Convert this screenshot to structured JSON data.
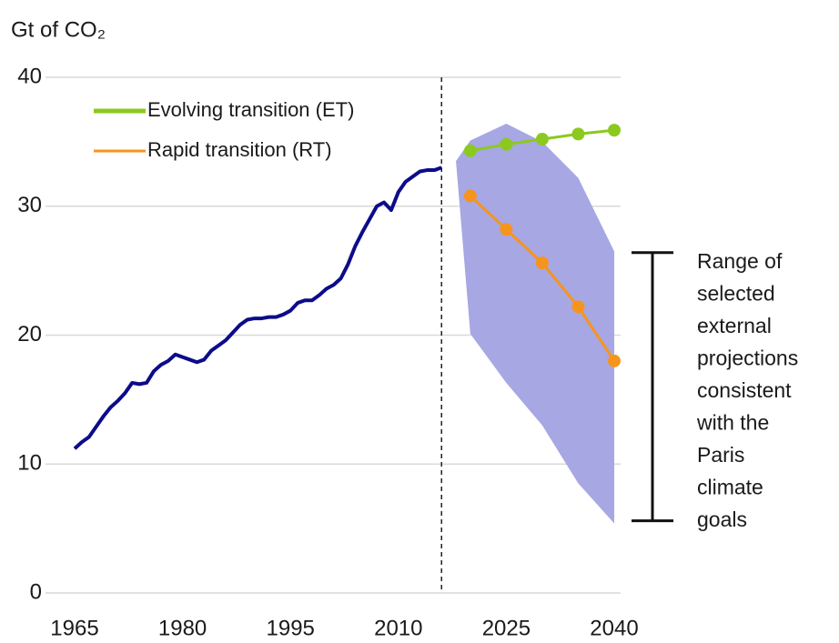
{
  "chart_data": {
    "type": "line",
    "y_label": "Gt of CO₂",
    "xlim": [
      1965,
      2040
    ],
    "xticks": [
      1965,
      1980,
      1995,
      2010,
      2025,
      2040
    ],
    "ylim": [
      0,
      40
    ],
    "yticks": [
      0,
      10,
      20,
      30,
      40
    ],
    "grid": true,
    "divider_x": 2016,
    "history": {
      "color": "#0c0c8a",
      "x": [
        1965,
        1966,
        1967,
        1968,
        1969,
        1970,
        1971,
        1972,
        1973,
        1974,
        1975,
        1976,
        1977,
        1978,
        1979,
        1980,
        1981,
        1982,
        1983,
        1984,
        1985,
        1986,
        1987,
        1988,
        1989,
        1990,
        1991,
        1992,
        1993,
        1994,
        1995,
        1996,
        1997,
        1998,
        1999,
        2000,
        2001,
        2002,
        2003,
        2004,
        2005,
        2006,
        2007,
        2008,
        2009,
        2010,
        2011,
        2012,
        2013,
        2014,
        2015,
        2016
      ],
      "values": [
        11.2,
        11.7,
        12.1,
        12.9,
        13.7,
        14.4,
        14.9,
        15.5,
        16.3,
        16.2,
        16.3,
        17.2,
        17.7,
        18.0,
        18.5,
        18.3,
        18.1,
        17.9,
        18.1,
        18.8,
        19.2,
        19.6,
        20.2,
        20.8,
        21.2,
        21.3,
        21.3,
        21.4,
        21.4,
        21.6,
        21.9,
        22.5,
        22.7,
        22.7,
        23.1,
        23.6,
        23.9,
        24.4,
        25.5,
        26.9,
        28.0,
        29.0,
        30.0,
        30.3,
        29.7,
        31.1,
        31.9,
        32.3,
        32.7,
        32.8,
        32.8,
        33.0
      ]
    },
    "band": {
      "color": "#a7a7e3",
      "x": [
        2018,
        2020,
        2025,
        2030,
        2035,
        2040
      ],
      "upper": [
        33.5,
        35.1,
        36.4,
        35.0,
        32.2,
        26.5
      ],
      "lower": [
        33.5,
        20.1,
        16.3,
        13.0,
        8.5,
        5.4
      ]
    },
    "series": [
      {
        "name": "Evolving transition (ET)",
        "color": "#8cc91e",
        "x": [
          2020,
          2025,
          2030,
          2035,
          2040
        ],
        "values": [
          34.3,
          34.8,
          35.2,
          35.6,
          35.9
        ]
      },
      {
        "name": "Rapid transition (RT)",
        "color": "#f7941d",
        "x": [
          2020,
          2025,
          2030,
          2035,
          2040
        ],
        "values": [
          30.8,
          28.2,
          25.6,
          22.2,
          18.0
        ]
      }
    ],
    "bracket": [
      5.6,
      26.4
    ],
    "annotation": [
      "Range of",
      "selected",
      "external",
      "projections",
      "consistent",
      "with the",
      "Paris",
      "climate",
      "goals"
    ]
  }
}
